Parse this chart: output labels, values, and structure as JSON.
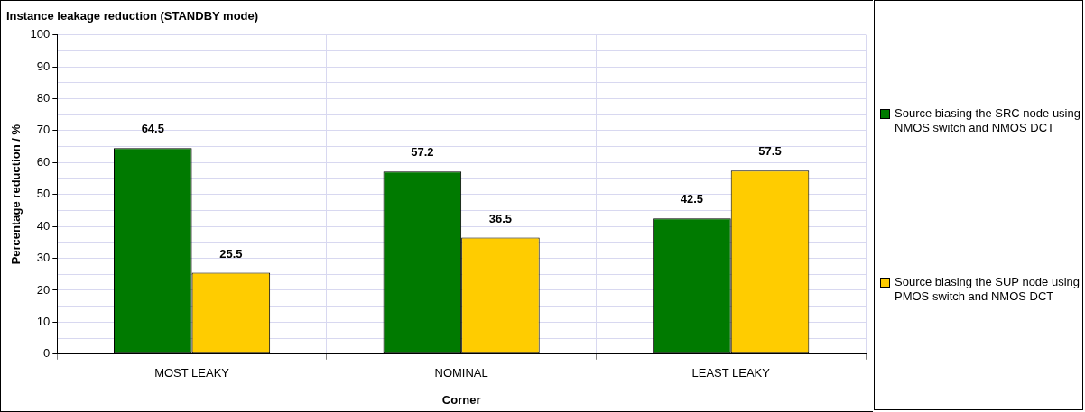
{
  "chart_data": {
    "type": "bar",
    "title": "Instance leakage reduction (STANDBY mode)",
    "xlabel": "Corner",
    "ylabel": "Percentage reduction / %",
    "categories": [
      "MOST LEAKY",
      "NOMINAL",
      "LEAST LEAKY"
    ],
    "series": [
      {
        "name": "Source biasing the SRC node using NMOS switch and NMOS DCT",
        "color": "#007a00",
        "values": [
          64.5,
          57.2,
          42.5
        ]
      },
      {
        "name": "Source biasing the SUP node using PMOS switch and NMOS DCT",
        "color": "#ffcc00",
        "values": [
          25.5,
          36.5,
          57.5
        ]
      }
    ],
    "ylim": [
      0,
      100
    ],
    "yticks": [
      0,
      {
        "value": 5,
        "label": null
      },
      10,
      {
        "value": 15,
        "label": null
      },
      20,
      {
        "value": 25,
        "label": null
      },
      30,
      {
        "value": 35,
        "label": null
      },
      40,
      {
        "value": 45,
        "label": null
      },
      50,
      {
        "value": 55,
        "label": null
      },
      60,
      {
        "value": 65,
        "label": null
      },
      70,
      {
        "value": 75,
        "label": null
      },
      80,
      {
        "value": 85,
        "label": null
      },
      90,
      {
        "value": 95,
        "label": null
      },
      100
    ],
    "grid": true,
    "legend": "right",
    "data_labels": true
  }
}
